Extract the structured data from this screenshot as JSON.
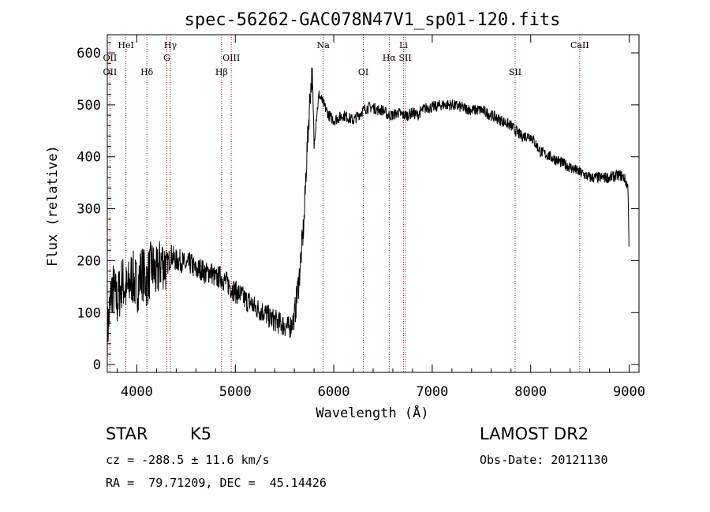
{
  "chart_data": {
    "type": "line",
    "title": "spec-56262-GAC078N47V1_sp01-120.fits",
    "xlabel": "Wavelength (Å)",
    "ylabel": "Flux (relative)",
    "xlim": [
      3700,
      9100
    ],
    "ylim": [
      -15,
      635
    ],
    "x_ticks": [
      4000,
      5000,
      6000,
      7000,
      8000,
      9000
    ],
    "y_ticks": [
      0,
      100,
      200,
      300,
      400,
      500,
      600
    ],
    "series": [
      {
        "x": [
          3700,
          3750,
          3800,
          3850,
          3900,
          3950,
          4000,
          4050,
          4100,
          4150,
          4200,
          4250,
          4300,
          4350,
          4400,
          4450,
          4500,
          4550,
          4600,
          4650,
          4700,
          4750,
          4800,
          4850,
          4900,
          4950,
          5000,
          5050,
          5100,
          5150,
          5200,
          5250,
          5300,
          5350,
          5400,
          5450,
          5500,
          5550,
          5600,
          5650,
          5700,
          5720,
          5740,
          5760,
          5780,
          5800,
          5820,
          5850,
          5900,
          5950,
          6000,
          6050,
          6100,
          6150,
          6200,
          6250,
          6300,
          6350,
          6400,
          6450,
          6500,
          6550,
          6600,
          6650,
          6700,
          6750,
          6800,
          6850,
          6900,
          6950,
          7000,
          7100,
          7200,
          7300,
          7400,
          7500,
          7600,
          7700,
          7800,
          7900,
          8000,
          8100,
          8200,
          8300,
          8400,
          8500,
          8600,
          8700,
          8800,
          8900,
          8950,
          8990,
          9000
        ],
        "y": [
          60,
          150,
          120,
          160,
          140,
          170,
          150,
          180,
          160,
          190,
          170,
          200,
          190,
          210,
          200,
          200,
          190,
          195,
          180,
          185,
          175,
          180,
          165,
          170,
          160,
          150,
          140,
          135,
          125,
          120,
          110,
          105,
          100,
          90,
          85,
          80,
          75,
          70,
          90,
          170,
          280,
          380,
          450,
          520,
          560,
          420,
          470,
          520,
          500,
          480,
          470,
          475,
          480,
          475,
          470,
          480,
          490,
          495,
          495,
          490,
          490,
          480,
          480,
          485,
          480,
          480,
          485,
          480,
          490,
          495,
          495,
          500,
          500,
          495,
          490,
          490,
          480,
          470,
          460,
          440,
          440,
          410,
          400,
          390,
          380,
          370,
          360,
          360,
          360,
          365,
          360,
          340,
          200
        ]
      }
    ],
    "lines": [
      {
        "label": "OII",
        "x": 3727,
        "tier": 3
      },
      {
        "label": "HeI",
        "x": 3889,
        "tier": 1
      },
      {
        "label": "Hδ",
        "x": 4102,
        "tier": 3
      },
      {
        "label": "Hγ",
        "x": 4341,
        "tier": 1
      },
      {
        "label": "G",
        "x": 4305,
        "tier": 2
      },
      {
        "label": "Hβ",
        "x": 4861,
        "tier": 3
      },
      {
        "label": "OIII",
        "x": 4959,
        "tier": 2
      },
      {
        "label": "Na",
        "x": 5893,
        "tier": 1
      },
      {
        "label": "OI",
        "x": 6300,
        "tier": 3
      },
      {
        "label": "Hα",
        "x": 6563,
        "tier": 2
      },
      {
        "label": "Li",
        "x": 6708,
        "tier": 1
      },
      {
        "label": "SII",
        "x": 6725,
        "tier": 2
      },
      {
        "label": "SII",
        "x": 7842,
        "tier": 3
      },
      {
        "label": "CaII",
        "x": 8498,
        "tier": 1
      }
    ],
    "extra_labels": [
      {
        "label": "OII",
        "x": 3727,
        "tier": 2
      }
    ]
  },
  "info": {
    "object_type": "STAR",
    "subclass": "K5",
    "survey": "LAMOST DR2",
    "cz": "cz = -288.5 ± 11.6 km/s",
    "obs_date": "Obs-Date: 20121130",
    "coords": "RA =  79.71209, DEC =  45.14426"
  },
  "colors": {
    "line_marker": "#b22222",
    "spectrum": "#000000"
  }
}
